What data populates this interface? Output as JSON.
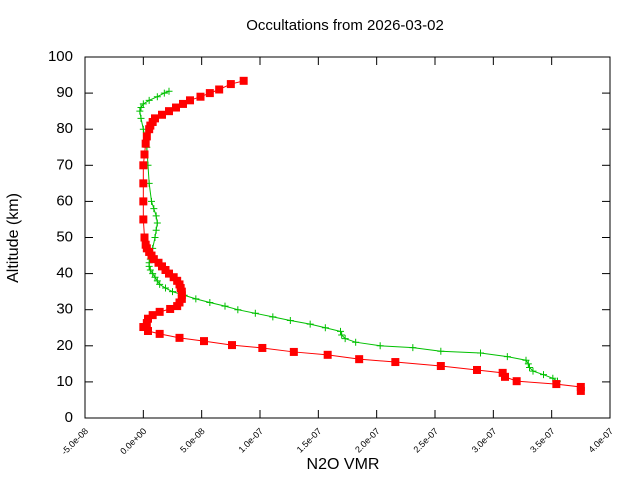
{
  "chart_data": {
    "type": "line",
    "title": "Occultations from 2026-03-02",
    "x_label": "N2O VMR",
    "y_label": "Altitude (km)",
    "xlim": [
      -5e-08,
      4e-07
    ],
    "ylim": [
      0,
      100
    ],
    "xticks": [
      {
        "value": -5e-08,
        "label": "-5.0e-08"
      },
      {
        "value": 0,
        "label": "0.0e+00"
      },
      {
        "value": 5e-08,
        "label": "5.0e-08"
      },
      {
        "value": 1e-07,
        "label": "1.0e-07"
      },
      {
        "value": 1.5e-07,
        "label": "1.5e-07"
      },
      {
        "value": 2e-07,
        "label": "2.0e-07"
      },
      {
        "value": 2.5e-07,
        "label": "2.5e-07"
      },
      {
        "value": 3e-07,
        "label": "3.0e-07"
      },
      {
        "value": 3.5e-07,
        "label": "3.5e-07"
      },
      {
        "value": 4e-07,
        "label": "4.0e-07"
      }
    ],
    "yticks": [
      0,
      10,
      20,
      30,
      40,
      50,
      60,
      70,
      80,
      90,
      100
    ],
    "grid": false,
    "series": [
      {
        "color": "#00c000",
        "marker": "plus",
        "x": [
          3.55e-07,
          3.51e-07,
          3.43e-07,
          3.34e-07,
          3.31e-07,
          3.3e-07,
          3.28e-07,
          3.12e-07,
          2.89e-07,
          2.55e-07,
          2.31e-07,
          2.03e-07,
          1.82e-07,
          1.73e-07,
          1.7e-07,
          1.69e-07,
          1.56e-07,
          1.43e-07,
          1.26e-07,
          1.11e-07,
          9.6e-08,
          8.1e-08,
          7e-08,
          5.7e-08,
          4.5e-08,
          3.5e-08,
          2.5e-08,
          1.9e-08,
          1.4e-08,
          1.2e-08,
          1e-08,
          8e-09,
          6e-09,
          5e-09,
          5e-09,
          6e-09,
          7e-09,
          8e-09,
          1e-08,
          1.1e-08,
          1.2e-08,
          1.1e-08,
          9e-09,
          7e-09,
          5e-09,
          4e-09,
          3e-09,
          0,
          -2e-09,
          -3e-09,
          -2e-09,
          0,
          5e-09,
          1.2e-08,
          1.8e-08,
          2.2e-08
        ],
        "y": [
          10.2,
          11,
          12,
          13,
          14,
          15,
          16,
          17,
          18,
          18.5,
          19.5,
          20,
          21,
          22,
          23,
          24,
          25,
          26,
          27,
          28,
          29,
          30,
          31,
          32,
          33,
          34,
          35,
          36,
          37,
          38,
          39,
          40,
          41,
          42,
          43,
          44,
          45,
          47,
          50,
          52,
          54,
          56,
          58,
          60,
          65,
          70,
          75,
          80,
          83,
          85,
          86,
          87,
          88,
          89,
          90,
          90.5
        ]
      },
      {
        "color": "#ff0000",
        "marker": "square",
        "x": [
          3.75e-07,
          3.75e-07,
          3.54e-07,
          3.2e-07,
          3.1e-07,
          3.08e-07,
          2.86e-07,
          2.55e-07,
          2.16e-07,
          1.85e-07,
          1.58e-07,
          1.29e-07,
          1.02e-07,
          7.6e-08,
          5.2e-08,
          3.1e-08,
          1.4e-08,
          4e-09,
          0,
          3e-09,
          4e-09,
          8e-09,
          1.4e-08,
          2.3e-08,
          2.9e-08,
          3.1e-08,
          3.3e-08,
          3.3e-08,
          3.3e-08,
          3.2e-08,
          3.1e-08,
          2.9e-08,
          2.6e-08,
          2.2e-08,
          1.9e-08,
          1.6e-08,
          1.3e-08,
          9e-09,
          7e-09,
          5e-09,
          3e-09,
          2e-09,
          1e-09,
          0,
          0,
          0,
          0,
          1e-09,
          2e-09,
          3e-09,
          5e-09,
          6e-09,
          8e-09,
          1e-08,
          1.6e-08,
          2.2e-08,
          2.8e-08,
          3.4e-08,
          4e-08,
          4.9e-08,
          5.7e-08,
          6.5e-08,
          7.5e-08,
          8.6e-08
        ],
        "y": [
          7.5,
          8.6,
          9.4,
          10.2,
          11.4,
          12.5,
          13.3,
          14.4,
          15.5,
          16.3,
          17.5,
          18.3,
          19.4,
          20.2,
          21.3,
          22.2,
          23.3,
          24.1,
          25.2,
          26.3,
          27.5,
          28.5,
          29.4,
          30.2,
          31,
          32,
          33,
          34,
          35,
          36,
          37,
          38,
          39,
          40,
          41,
          42,
          43,
          44,
          45,
          46,
          47,
          48,
          50,
          55,
          60,
          65,
          70,
          73,
          76,
          78,
          80,
          81,
          82,
          83,
          84,
          85,
          86,
          87,
          88,
          89,
          90,
          91,
          92.5,
          93.4
        ]
      }
    ]
  }
}
